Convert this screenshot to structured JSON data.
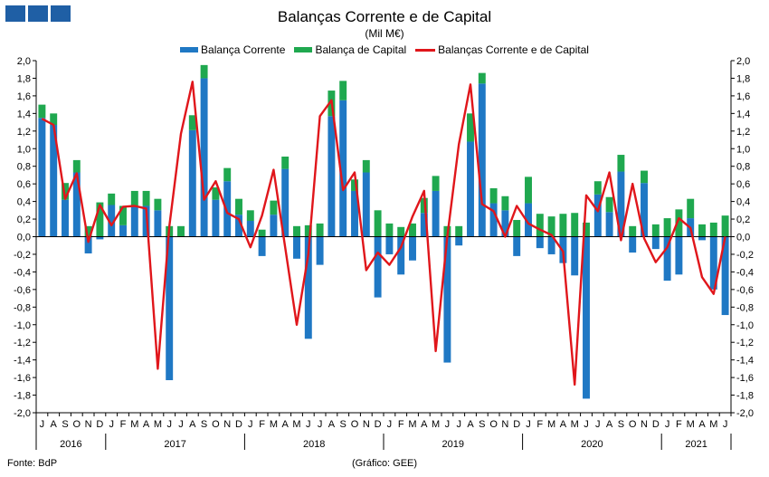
{
  "title": "Balanças Corrente e de Capital",
  "subtitle": "(Mil M€)",
  "footer": {
    "source": "Fonte: BdP",
    "credit": "(Gráfico: GEE)"
  },
  "colors": {
    "current": "#1f78c4",
    "capital": "#1fa84f",
    "total": "#e0161b",
    "logo": "#1f5fa5"
  },
  "chart_data": {
    "type": "bar",
    "ylim": [
      -2.0,
      2.0
    ],
    "ytick_step": 0.2,
    "yticks_left": true,
    "yticks_right": true,
    "grid": false,
    "legend_position": "top-center",
    "months": [
      "J",
      "A",
      "S",
      "O",
      "N",
      "D",
      "J",
      "F",
      "M",
      "A",
      "M",
      "J",
      "J",
      "A",
      "S",
      "O",
      "N",
      "D",
      "J",
      "F",
      "M",
      "A",
      "M",
      "J",
      "J",
      "A",
      "S",
      "O",
      "N",
      "D",
      "J",
      "F",
      "M",
      "A",
      "M",
      "J",
      "J",
      "A",
      "S",
      "O",
      "N",
      "D",
      "J",
      "F",
      "M",
      "A",
      "M",
      "J",
      "J",
      "A",
      "S",
      "O",
      "N",
      "D",
      "J",
      "F",
      "M",
      "A",
      "M",
      "J"
    ],
    "years": [
      {
        "label": "2016",
        "start": 0,
        "count": 6
      },
      {
        "label": "2017",
        "start": 6,
        "count": 12
      },
      {
        "label": "2018",
        "start": 18,
        "count": 12
      },
      {
        "label": "2019",
        "start": 30,
        "count": 12
      },
      {
        "label": "2020",
        "start": 42,
        "count": 12
      },
      {
        "label": "2021",
        "start": 54,
        "count": 6
      }
    ],
    "series": [
      {
        "name": "Balança Corrente",
        "kind": "bar",
        "color": "#1f78c4",
        "values": [
          1.35,
          1.27,
          0.42,
          0.73,
          -0.19,
          -0.03,
          0.36,
          0.13,
          0.35,
          0.35,
          0.3,
          -1.63,
          0.0,
          1.21,
          1.8,
          0.42,
          0.63,
          0.25,
          0.18,
          -0.22,
          0.25,
          0.77,
          -0.25,
          -1.16,
          -0.32,
          1.37,
          1.55,
          0.52,
          0.73,
          -0.69,
          -0.2,
          -0.43,
          -0.27,
          0.27,
          0.52,
          -1.43,
          -0.1,
          1.08,
          1.74,
          0.38,
          0.3,
          -0.22,
          0.38,
          -0.13,
          -0.2,
          -0.3,
          -0.44,
          -1.84,
          0.48,
          0.28,
          0.74,
          -0.18,
          0.61,
          -0.14,
          -0.5,
          -0.43,
          0.21,
          -0.04,
          -0.6,
          -0.89
        ]
      },
      {
        "name": "Balança de Capital",
        "kind": "bar",
        "color": "#1fa84f",
        "values": [
          0.15,
          0.13,
          0.19,
          0.14,
          0.12,
          0.39,
          0.13,
          0.22,
          0.17,
          0.17,
          0.13,
          0.12,
          0.12,
          0.17,
          0.15,
          0.14,
          0.15,
          0.18,
          0.12,
          0.08,
          0.16,
          0.14,
          0.12,
          0.13,
          0.15,
          0.29,
          0.22,
          0.13,
          0.14,
          0.3,
          0.15,
          0.11,
          0.15,
          0.17,
          0.17,
          0.12,
          0.12,
          0.32,
          0.12,
          0.17,
          0.16,
          0.19,
          0.3,
          0.26,
          0.23,
          0.26,
          0.27,
          0.16,
          0.15,
          0.17,
          0.19,
          0.12,
          0.14,
          0.14,
          0.21,
          0.31,
          0.22,
          0.14,
          0.16,
          0.24
        ]
      },
      {
        "name": "Balanças Corrente e de Capital",
        "kind": "line",
        "color": "#e0161b",
        "values": [
          1.34,
          1.27,
          0.43,
          0.72,
          -0.06,
          0.36,
          0.13,
          0.34,
          0.35,
          0.32,
          -1.5,
          0.12,
          1.17,
          1.76,
          0.42,
          0.63,
          0.27,
          0.2,
          -0.12,
          0.24,
          0.76,
          -0.12,
          -1.0,
          -0.2,
          1.37,
          1.55,
          0.53,
          0.73,
          -0.38,
          -0.18,
          -0.32,
          -0.12,
          0.23,
          0.52,
          -1.3,
          0.0,
          1.05,
          1.73,
          0.37,
          0.29,
          0.0,
          0.35,
          0.15,
          0.08,
          0.02,
          -0.17,
          -1.68,
          0.47,
          0.29,
          0.73,
          -0.04,
          0.6,
          -0.02,
          -0.29,
          -0.12,
          0.21,
          0.1,
          -0.46,
          -0.65,
          0.0
        ]
      }
    ]
  }
}
